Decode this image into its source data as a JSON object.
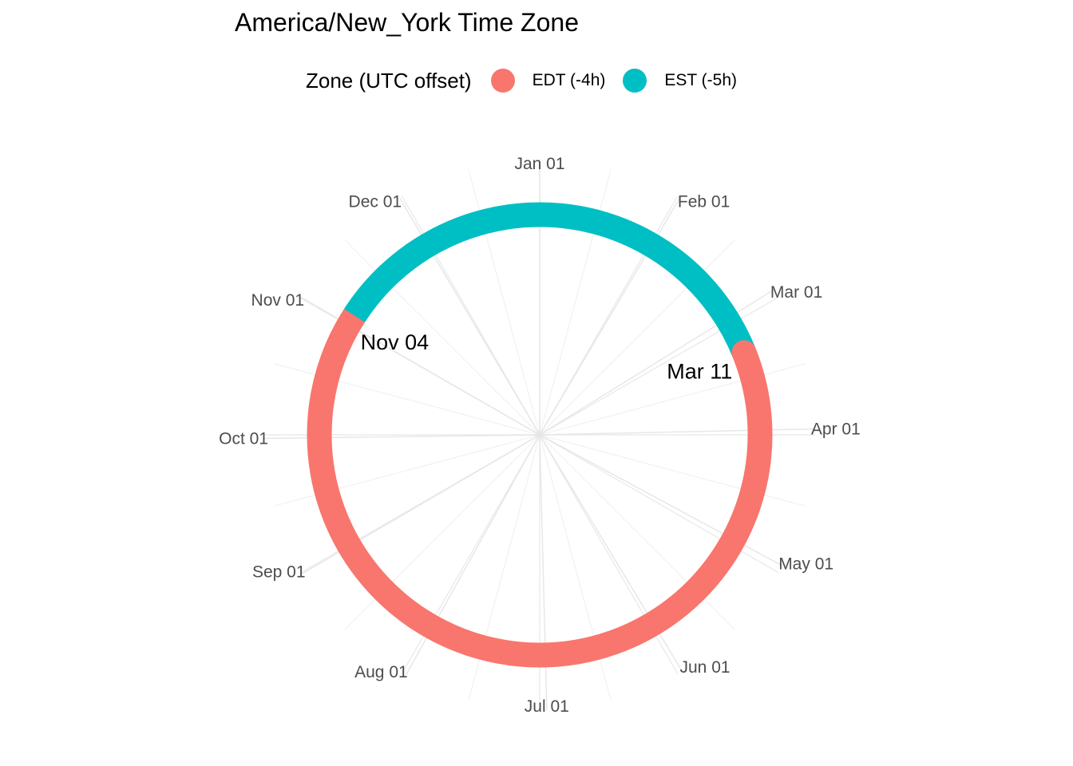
{
  "chart_data": {
    "type": "radial-timeline",
    "title": "America/New_York Time Zone",
    "legend": {
      "title": "Zone (UTC offset)",
      "position": "top",
      "entries": [
        {
          "label": "EDT (-4h)",
          "color": "#F8766D"
        },
        {
          "label": "EST (-5h)",
          "color": "#00BFC4"
        }
      ]
    },
    "angular_ticks": [
      "Jan 01",
      "Feb 01",
      "Mar 01",
      "Apr 01",
      "May 01",
      "Jun 01",
      "Jul 01",
      "Aug 01",
      "Sep 01",
      "Oct 01",
      "Nov 01",
      "Dec 01"
    ],
    "segments": [
      {
        "zone": "EST (-5h)",
        "start": "Jan 01",
        "end": "Mar 11",
        "color": "#00BFC4"
      },
      {
        "zone": "EDT (-4h)",
        "start": "Mar 11",
        "end": "Nov 04",
        "color": "#F8766D"
      },
      {
        "zone": "EST (-5h)",
        "start": "Nov 04",
        "end": "Dec 31",
        "color": "#00BFC4"
      }
    ],
    "annotations": [
      "Mar 11",
      "Nov 04"
    ],
    "grid": true
  }
}
